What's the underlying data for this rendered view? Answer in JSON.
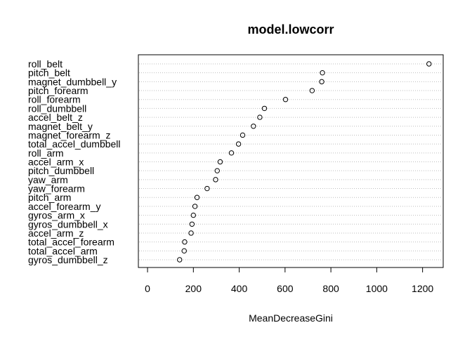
{
  "chart_data": {
    "type": "scatter",
    "title": "model.lowcorr",
    "xlabel": "MeanDecreaseGini",
    "ylabel": "",
    "xlim": [
      -40,
      1290
    ],
    "xticks": [
      0,
      200,
      400,
      600,
      800,
      1000,
      1200
    ],
    "grid": "dotted horizontal lines",
    "variables": [
      {
        "name": "roll_belt",
        "value": 1228
      },
      {
        "name": "pitch_belt",
        "value": 763
      },
      {
        "name": "magnet_dumbbell_y",
        "value": 760
      },
      {
        "name": "pitch_forearm",
        "value": 718
      },
      {
        "name": "roll_forearm",
        "value": 602
      },
      {
        "name": "roll_dumbbell",
        "value": 510
      },
      {
        "name": "accel_belt_z",
        "value": 490
      },
      {
        "name": "magnet_belt_y",
        "value": 462
      },
      {
        "name": "magnet_forearm_z",
        "value": 415
      },
      {
        "name": "total_accel_dumbbell",
        "value": 397
      },
      {
        "name": "roll_arm",
        "value": 366
      },
      {
        "name": "accel_arm_x",
        "value": 317
      },
      {
        "name": "pitch_dumbbell",
        "value": 304
      },
      {
        "name": "yaw_arm",
        "value": 297
      },
      {
        "name": "yaw_forearm",
        "value": 260
      },
      {
        "name": "pitch_arm",
        "value": 216
      },
      {
        "name": "accel_forearm_y",
        "value": 207
      },
      {
        "name": "gyros_arm_x",
        "value": 200
      },
      {
        "name": "gyros_dumbbell_x",
        "value": 194
      },
      {
        "name": "accel_arm_z",
        "value": 190
      },
      {
        "name": "total_accel_forearm",
        "value": 162
      },
      {
        "name": "total_accel_arm",
        "value": 160
      },
      {
        "name": "gyros_dumbbell_z",
        "value": 140
      }
    ]
  }
}
